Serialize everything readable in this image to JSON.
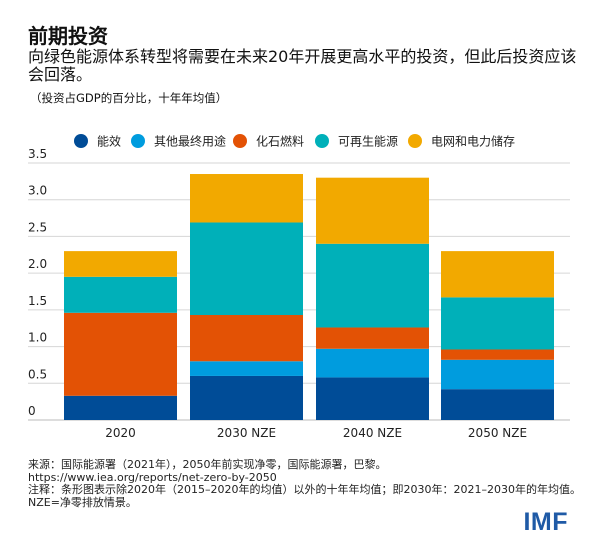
{
  "title": "前期投资",
  "subtitle": "向绿色能源体系转型将需要在未来20年开展更高水平的投资，但此后投资应该会回落。",
  "unit_note": "（投资占GDP的百分比，十年年均值）",
  "chart_data": {
    "type": "bar",
    "stacked": true,
    "categories": [
      "2020",
      "2030 NZE",
      "2040 NZE",
      "2050 NZE"
    ],
    "series": [
      {
        "name": "能效",
        "color": "#004c97",
        "values": [
          0.33,
          0.6,
          0.58,
          0.42
        ]
      },
      {
        "name": "其他最终用途",
        "color": "#009cde",
        "values": [
          0.0,
          0.2,
          0.39,
          0.4
        ]
      },
      {
        "name": "化石燃料",
        "color": "#e35205",
        "values": [
          1.13,
          0.63,
          0.29,
          0.14
        ]
      },
      {
        "name": "可再生能源",
        "color": "#00b0b9",
        "values": [
          0.49,
          1.26,
          1.14,
          0.71
        ]
      },
      {
        "name": "电网和电力储存",
        "color": "#f2a900",
        "values": [
          0.35,
          0.66,
          0.9,
          0.63
        ]
      }
    ],
    "ylim": [
      0,
      3.5
    ],
    "yticks": [
      "0",
      "0.5",
      "1.0",
      "1.5",
      "2.0",
      "2.5",
      "3.0",
      "3.5"
    ],
    "grid": true,
    "legend": "top"
  },
  "notes": {
    "source": "来源：国际能源署（2021年），2050年前实现净零，国际能源署，巴黎。",
    "url": "https://www.iea.org/reports/net-zero-by-2050",
    "note": "注释：条形图表示除2020年（2015–2020年的均值）以外的十年年均值；即2030年：2021–2030年的年均值。NZE=净零排放情景。"
  },
  "logo": "IMF"
}
